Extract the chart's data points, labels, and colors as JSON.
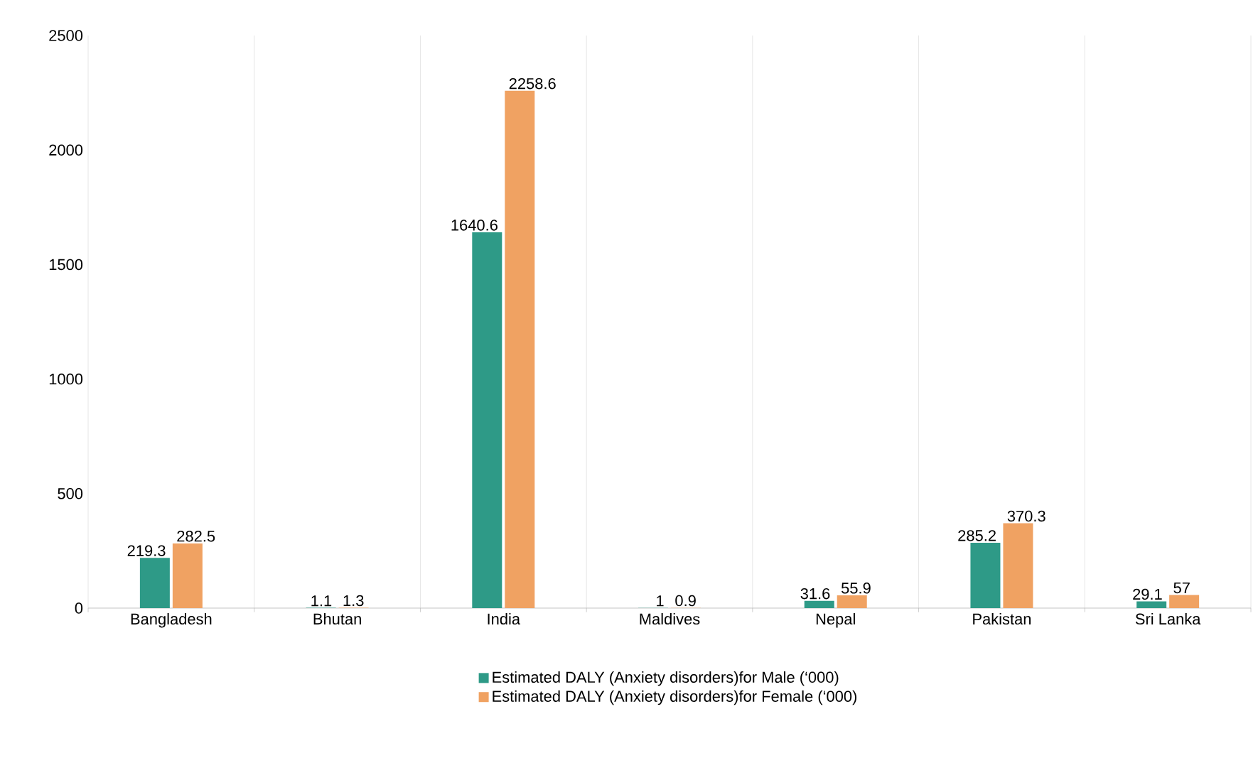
{
  "chart_data": {
    "type": "bar",
    "categories": [
      "Bangladesh",
      "Bhutan",
      "India",
      "Maldives",
      "Nepal",
      "Pakistan",
      "Sri Lanka"
    ],
    "series": [
      {
        "name": "Estimated DALY (Anxiety disorders)for Male (‘000)",
        "color": "#2e9a87",
        "values": [
          219.3,
          1.1,
          1640.6,
          1,
          31.6,
          285.2,
          29.1
        ]
      },
      {
        "name": "Estimated DALY (Anxiety disorders)for Female (‘000)",
        "color": "#f0a262",
        "values": [
          282.5,
          1.3,
          2258.6,
          0.9,
          55.9,
          370.3,
          57
        ]
      }
    ],
    "ylim": [
      0,
      2500
    ],
    "yticks": [
      0,
      500,
      1000,
      1500,
      2000,
      2500
    ],
    "grid": "x",
    "legend": "bottom",
    "data_labels": true
  }
}
